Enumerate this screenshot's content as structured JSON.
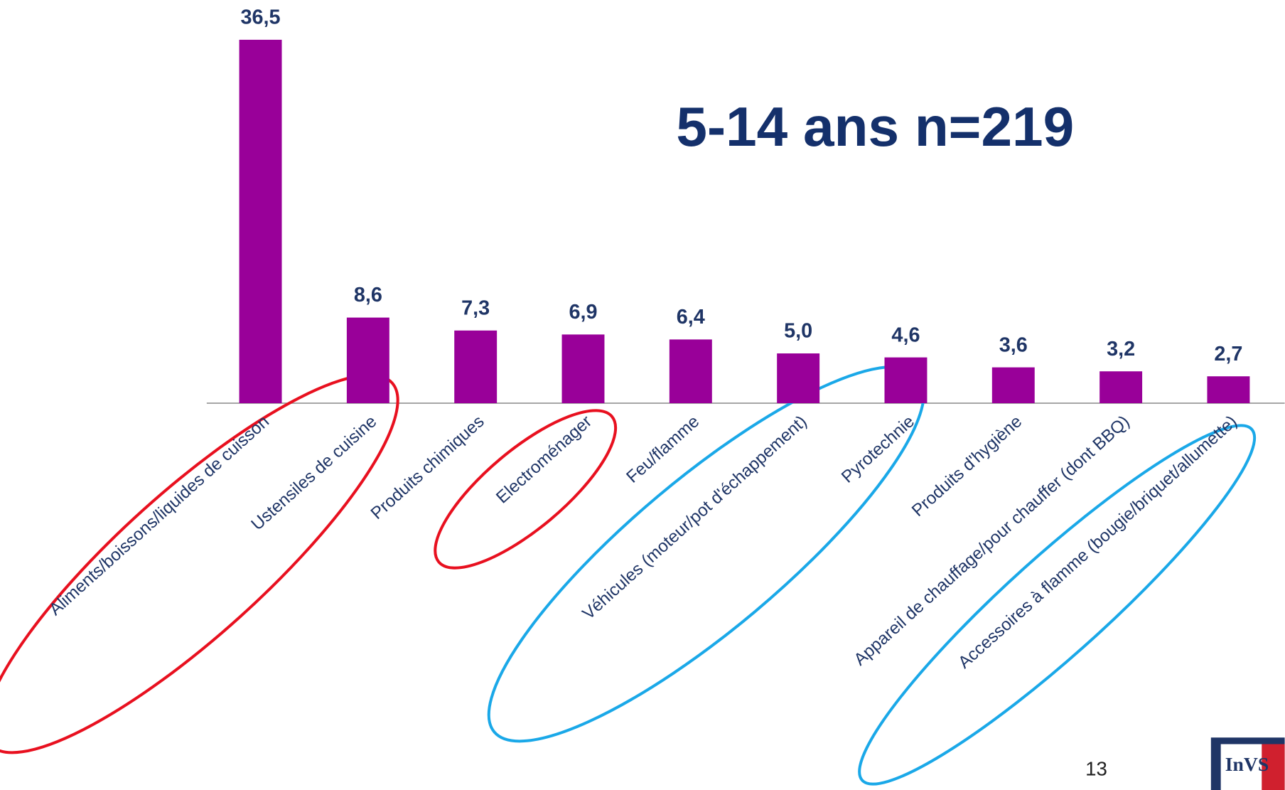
{
  "chart_data": {
    "type": "bar",
    "title": "5-14 ans n=219",
    "categories": [
      "Aliments/boissons/liquides de cuisson",
      "Ustensiles de cuisine",
      "Produits chimiques",
      "Electroménager",
      "Feu/flamme",
      "Véhicules (moteur/pot d'échappement)",
      "Pyrotechnie",
      "Produits d'hygiène",
      "Appareil de chauffage/pour chauffer (dont BBQ)",
      "Accessoires à flamme (bougie/briquet/allumette)"
    ],
    "values": [
      36.5,
      8.6,
      7.3,
      6.9,
      6.4,
      5.0,
      4.6,
      3.6,
      3.2,
      2.7
    ],
    "value_labels": [
      "36,5",
      "8,6",
      "7,3",
      "6,9",
      "6,4",
      "5,0",
      "4,6",
      "3,6",
      "3,2",
      "2,7"
    ],
    "color": "#990099",
    "ylim": [
      0,
      40
    ]
  },
  "page_number": "13",
  "logo": "InVS"
}
